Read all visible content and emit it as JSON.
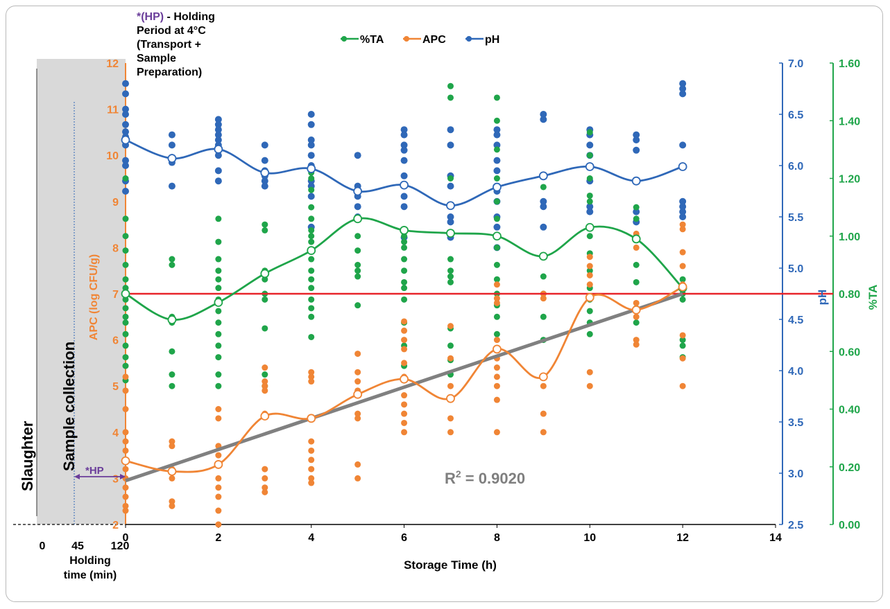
{
  "chart_data": {
    "type": "line",
    "xlabel": "Storage Time (h)",
    "ylabel_left": "APC (log CFU/g)",
    "ylabel_right_ph": "pH",
    "ylabel_right_ta": "%TA",
    "x_ticks": [
      "0",
      "2",
      "4",
      "6",
      "8",
      "10",
      "12",
      "14"
    ],
    "xlim": [
      0,
      14
    ],
    "apc_ticks": [
      "2",
      "3",
      "4",
      "5",
      "6",
      "7",
      "8",
      "9",
      "10",
      "11",
      "12"
    ],
    "apc_lim": [
      2,
      12
    ],
    "ph_ticks": [
      "2.5",
      "3.0",
      "3.5",
      "4.0",
      "4.5",
      "5.0",
      "5.5",
      "6.0",
      "6.5",
      "7.0"
    ],
    "ph_lim": [
      2.5,
      7.0
    ],
    "ta_ticks": [
      "0.00",
      "0.20",
      "0.40",
      "0.60",
      "0.80",
      "1.00",
      "1.20",
      "1.40",
      "1.60"
    ],
    "ta_lim": [
      0,
      1.6
    ],
    "legend": [
      {
        "name": "%TA",
        "color": "#1fa54a"
      },
      {
        "name": "APC",
        "color": "#f08535"
      },
      {
        "name": "pH",
        "color": "#2f68b8"
      }
    ],
    "legend_position": "top-center",
    "threshold_apc": 7,
    "threshold_color": "#e8242a",
    "trend": {
      "x": [
        0,
        12
      ],
      "apc": [
        2.95,
        7.0
      ],
      "color": "#808080"
    },
    "r_squared_label": "R",
    "r_squared_sup": "2",
    "r_squared_value": " = 0.9020",
    "means": {
      "x": [
        0,
        1,
        2,
        3,
        4,
        5,
        6,
        7,
        8,
        9,
        10,
        11,
        12
      ],
      "ph": [
        6.25,
        6.07,
        6.16,
        5.93,
        5.97,
        5.75,
        5.81,
        5.61,
        5.79,
        5.9,
        5.99,
        5.85,
        5.99
      ],
      "apc": [
        3.38,
        3.15,
        3.3,
        4.35,
        4.3,
        4.82,
        5.15,
        4.73,
        5.8,
        5.2,
        6.92,
        6.65,
        7.15
      ],
      "ta": [
        0.8,
        0.71,
        0.77,
        0.87,
        0.95,
        1.06,
        1.02,
        1.01,
        1.0,
        0.93,
        1.03,
        0.99,
        0.82
      ]
    },
    "scatter_ph": [
      [
        0,
        6.8
      ],
      [
        0,
        6.7
      ],
      [
        0,
        6.55
      ],
      [
        0,
        6.5
      ],
      [
        0,
        6.4
      ],
      [
        0,
        6.33
      ],
      [
        0,
        6.28
      ],
      [
        0,
        6.2
      ],
      [
        0,
        6.05
      ],
      [
        0,
        6.0
      ],
      [
        0,
        5.85
      ],
      [
        0,
        5.75
      ],
      [
        1,
        6.3
      ],
      [
        1,
        6.2
      ],
      [
        1,
        6.08
      ],
      [
        1,
        6.03
      ],
      [
        1,
        5.8
      ],
      [
        2,
        6.45
      ],
      [
        2,
        6.4
      ],
      [
        2,
        6.35
      ],
      [
        2,
        6.3
      ],
      [
        2,
        6.25
      ],
      [
        2,
        6.2
      ],
      [
        2,
        6.15
      ],
      [
        2,
        6.1
      ],
      [
        2,
        5.95
      ],
      [
        2,
        5.85
      ],
      [
        3,
        6.2
      ],
      [
        3,
        6.05
      ],
      [
        3,
        5.95
      ],
      [
        3,
        5.9
      ],
      [
        3,
        5.85
      ],
      [
        3,
        5.8
      ],
      [
        4,
        6.5
      ],
      [
        4,
        6.4
      ],
      [
        4,
        6.25
      ],
      [
        4,
        6.2
      ],
      [
        4,
        6.1
      ],
      [
        4,
        6.0
      ],
      [
        4,
        5.85
      ],
      [
        4,
        5.8
      ],
      [
        4,
        5.7
      ],
      [
        4,
        5.4
      ],
      [
        5,
        6.1
      ],
      [
        5,
        5.8
      ],
      [
        5,
        5.7
      ],
      [
        5,
        5.6
      ],
      [
        5,
        5.5
      ],
      [
        6,
        6.35
      ],
      [
        6,
        6.3
      ],
      [
        6,
        6.2
      ],
      [
        6,
        6.15
      ],
      [
        6,
        6.05
      ],
      [
        6,
        5.9
      ],
      [
        6,
        5.8
      ],
      [
        6,
        5.7
      ],
      [
        6,
        5.6
      ],
      [
        6,
        5.3
      ],
      [
        7,
        6.35
      ],
      [
        7,
        6.2
      ],
      [
        7,
        5.9
      ],
      [
        7,
        5.8
      ],
      [
        7,
        5.5
      ],
      [
        7,
        5.45
      ],
      [
        7,
        5.3
      ],
      [
        8,
        6.35
      ],
      [
        8,
        6.3
      ],
      [
        8,
        6.2
      ],
      [
        8,
        6.05
      ],
      [
        8,
        5.95
      ],
      [
        8,
        5.75
      ],
      [
        8,
        5.65
      ],
      [
        8,
        5.5
      ],
      [
        8,
        5.4
      ],
      [
        8,
        5.2
      ],
      [
        9,
        6.5
      ],
      [
        9,
        6.45
      ],
      [
        9,
        5.65
      ],
      [
        9,
        5.6
      ],
      [
        9,
        5.4
      ],
      [
        10,
        6.35
      ],
      [
        10,
        6.3
      ],
      [
        10,
        6.2
      ],
      [
        10,
        6.1
      ],
      [
        10,
        5.85
      ],
      [
        10,
        5.6
      ],
      [
        10,
        5.55
      ],
      [
        11,
        6.3
      ],
      [
        11,
        6.25
      ],
      [
        11,
        6.15
      ],
      [
        11,
        5.85
      ],
      [
        11,
        5.55
      ],
      [
        11,
        5.45
      ],
      [
        12,
        6.8
      ],
      [
        12,
        6.75
      ],
      [
        12,
        6.7
      ],
      [
        12,
        6.2
      ],
      [
        12,
        5.65
      ],
      [
        12,
        5.6
      ],
      [
        12,
        5.55
      ],
      [
        12,
        5.5
      ]
    ],
    "scatter_apc": [
      [
        0,
        5.2
      ],
      [
        0,
        4.9
      ],
      [
        0,
        4.5
      ],
      [
        0,
        4.0
      ],
      [
        0,
        3.8
      ],
      [
        0,
        3.6
      ],
      [
        0,
        3.4
      ],
      [
        0,
        3.2
      ],
      [
        0,
        3.0
      ],
      [
        0,
        2.8
      ],
      [
        0,
        2.6
      ],
      [
        0,
        2.4
      ],
      [
        0,
        2.3
      ],
      [
        1,
        3.8
      ],
      [
        1,
        3.7
      ],
      [
        1,
        3.2
      ],
      [
        1,
        3.0
      ],
      [
        1,
        2.5
      ],
      [
        1,
        2.4
      ],
      [
        2,
        4.5
      ],
      [
        2,
        4.3
      ],
      [
        2,
        3.7
      ],
      [
        2,
        3.5
      ],
      [
        2,
        3.3
      ],
      [
        2,
        3.0
      ],
      [
        2,
        2.8
      ],
      [
        2,
        2.6
      ],
      [
        2,
        2.3
      ],
      [
        2,
        2.0
      ],
      [
        3,
        5.4
      ],
      [
        3,
        5.1
      ],
      [
        3,
        5.0
      ],
      [
        3,
        4.9
      ],
      [
        3,
        4.4
      ],
      [
        3,
        3.2
      ],
      [
        3,
        3.0
      ],
      [
        3,
        2.8
      ],
      [
        3,
        2.7
      ],
      [
        4,
        5.3
      ],
      [
        4,
        5.2
      ],
      [
        4,
        5.1
      ],
      [
        4,
        3.8
      ],
      [
        4,
        3.6
      ],
      [
        4,
        3.4
      ],
      [
        4,
        3.2
      ],
      [
        4,
        3.0
      ],
      [
        4,
        2.9
      ],
      [
        5,
        5.7
      ],
      [
        5,
        5.3
      ],
      [
        5,
        5.1
      ],
      [
        5,
        4.9
      ],
      [
        5,
        4.4
      ],
      [
        5,
        4.3
      ],
      [
        5,
        3.3
      ],
      [
        5,
        3.0
      ],
      [
        6,
        6.4
      ],
      [
        6,
        6.2
      ],
      [
        6,
        6.0
      ],
      [
        6,
        5.8
      ],
      [
        6,
        5.5
      ],
      [
        6,
        5.2
      ],
      [
        6,
        4.8
      ],
      [
        6,
        4.6
      ],
      [
        6,
        4.4
      ],
      [
        6,
        4.2
      ],
      [
        6,
        4.0
      ],
      [
        7,
        6.3
      ],
      [
        7,
        5.6
      ],
      [
        7,
        5.0
      ],
      [
        7,
        4.7
      ],
      [
        7,
        4.3
      ],
      [
        7,
        4.0
      ],
      [
        8,
        7.2
      ],
      [
        8,
        6.9
      ],
      [
        8,
        6.8
      ],
      [
        8,
        6.0
      ],
      [
        8,
        5.6
      ],
      [
        8,
        5.4
      ],
      [
        8,
        5.2
      ],
      [
        8,
        5.0
      ],
      [
        8,
        4.7
      ],
      [
        8,
        4.0
      ],
      [
        9,
        7.0
      ],
      [
        9,
        6.9
      ],
      [
        9,
        5.0
      ],
      [
        9,
        4.4
      ],
      [
        9,
        4.0
      ],
      [
        10,
        7.8
      ],
      [
        10,
        7.6
      ],
      [
        10,
        7.4
      ],
      [
        10,
        7.2
      ],
      [
        10,
        6.9
      ],
      [
        10,
        5.3
      ],
      [
        10,
        5.0
      ],
      [
        11,
        8.3
      ],
      [
        11,
        8.0
      ],
      [
        11,
        6.8
      ],
      [
        11,
        6.5
      ],
      [
        11,
        6.0
      ],
      [
        11,
        5.9
      ],
      [
        12,
        8.5
      ],
      [
        12,
        8.4
      ],
      [
        12,
        7.9
      ],
      [
        12,
        7.6
      ],
      [
        12,
        7.2
      ],
      [
        12,
        6.1
      ],
      [
        12,
        5.6
      ],
      [
        12,
        5.0
      ]
    ],
    "scatter_ta": [
      [
        0,
        1.2
      ],
      [
        0,
        1.06
      ],
      [
        0,
        1.0
      ],
      [
        0,
        0.95
      ],
      [
        0,
        0.9
      ],
      [
        0,
        0.85
      ],
      [
        0,
        0.82
      ],
      [
        0,
        0.78
      ],
      [
        0,
        0.75
      ],
      [
        0,
        0.72
      ],
      [
        0,
        0.7
      ],
      [
        0,
        0.66
      ],
      [
        0,
        0.62
      ],
      [
        0,
        0.58
      ],
      [
        0,
        0.55
      ],
      [
        0,
        0.5
      ],
      [
        1,
        0.92
      ],
      [
        1,
        0.9
      ],
      [
        1,
        0.72
      ],
      [
        1,
        0.7
      ],
      [
        1,
        0.6
      ],
      [
        1,
        0.52
      ],
      [
        1,
        0.48
      ],
      [
        2,
        1.06
      ],
      [
        2,
        0.98
      ],
      [
        2,
        0.92
      ],
      [
        2,
        0.88
      ],
      [
        2,
        0.85
      ],
      [
        2,
        0.82
      ],
      [
        2,
        0.78
      ],
      [
        2,
        0.74
      ],
      [
        2,
        0.7
      ],
      [
        2,
        0.66
      ],
      [
        2,
        0.62
      ],
      [
        2,
        0.58
      ],
      [
        2,
        0.52
      ],
      [
        2,
        0.48
      ],
      [
        3,
        1.04
      ],
      [
        3,
        1.02
      ],
      [
        3,
        0.88
      ],
      [
        3,
        0.85
      ],
      [
        3,
        0.8
      ],
      [
        3,
        0.78
      ],
      [
        3,
        0.68
      ],
      [
        3,
        0.52
      ],
      [
        3,
        0.48
      ],
      [
        4,
        1.22
      ],
      [
        4,
        1.2
      ],
      [
        4,
        1.16
      ],
      [
        4,
        1.1
      ],
      [
        4,
        1.06
      ],
      [
        4,
        1.02
      ],
      [
        4,
        1.0
      ],
      [
        4,
        0.98
      ],
      [
        4,
        0.92
      ],
      [
        4,
        0.88
      ],
      [
        4,
        0.85
      ],
      [
        4,
        0.82
      ],
      [
        4,
        0.78
      ],
      [
        4,
        0.75
      ],
      [
        4,
        0.72
      ],
      [
        4,
        0.65
      ],
      [
        5,
        1.0
      ],
      [
        5,
        0.95
      ],
      [
        5,
        0.9
      ],
      [
        5,
        0.88
      ],
      [
        5,
        0.86
      ],
      [
        5,
        0.76
      ],
      [
        6,
        1.0
      ],
      [
        6,
        0.98
      ],
      [
        6,
        0.96
      ],
      [
        6,
        0.92
      ],
      [
        6,
        0.88
      ],
      [
        6,
        0.84
      ],
      [
        6,
        0.82
      ],
      [
        6,
        0.78
      ],
      [
        6,
        0.7
      ],
      [
        6,
        0.62
      ],
      [
        6,
        0.55
      ],
      [
        7,
        1.52
      ],
      [
        7,
        1.48
      ],
      [
        7,
        1.2
      ],
      [
        7,
        0.92
      ],
      [
        7,
        0.88
      ],
      [
        7,
        0.86
      ],
      [
        7,
        0.84
      ],
      [
        7,
        0.68
      ],
      [
        7,
        0.62
      ],
      [
        7,
        0.57
      ],
      [
        7,
        0.52
      ],
      [
        8,
        1.48
      ],
      [
        8,
        1.4
      ],
      [
        8,
        1.3
      ],
      [
        8,
        1.2
      ],
      [
        8,
        1.12
      ],
      [
        8,
        1.06
      ],
      [
        8,
        0.96
      ],
      [
        8,
        0.9
      ],
      [
        8,
        0.85
      ],
      [
        8,
        0.8
      ],
      [
        8,
        0.76
      ],
      [
        8,
        0.72
      ],
      [
        8,
        0.66
      ],
      [
        9,
        1.17
      ],
      [
        9,
        0.86
      ],
      [
        9,
        0.8
      ],
      [
        9,
        0.72
      ],
      [
        9,
        0.64
      ],
      [
        10,
        1.36
      ],
      [
        10,
        1.28
      ],
      [
        10,
        1.2
      ],
      [
        10,
        1.14
      ],
      [
        10,
        1.12
      ],
      [
        10,
        1.0
      ],
      [
        10,
        0.94
      ],
      [
        10,
        0.88
      ],
      [
        10,
        0.82
      ],
      [
        10,
        0.78
      ],
      [
        10,
        0.74
      ],
      [
        10,
        0.7
      ],
      [
        10,
        0.66
      ],
      [
        11,
        1.1
      ],
      [
        11,
        1.06
      ],
      [
        11,
        1.0
      ],
      [
        11,
        0.9
      ],
      [
        11,
        0.84
      ],
      [
        11,
        0.75
      ],
      [
        11,
        0.7
      ],
      [
        12,
        0.85
      ],
      [
        12,
        0.8
      ],
      [
        12,
        0.78
      ],
      [
        12,
        0.64
      ],
      [
        12,
        0.62
      ],
      [
        12,
        0.58
      ]
    ]
  },
  "annotations": {
    "hp_title_prefix": "*(HP)",
    "hp_title_rest": " - Holding",
    "hp_lines": [
      "Period  at 4°C",
      "(Transport +",
      "Sample",
      "Preparation)"
    ],
    "hp_arrow_label": "*HP",
    "slaughter": "Slaughter",
    "sample_collection": "Sample collection",
    "holding_ticks": [
      "0",
      "45",
      "120"
    ],
    "holding_label_1": "Holding",
    "holding_label_2": "time (min)"
  },
  "colors": {
    "ta": "#1fa54a",
    "apc": "#f08535",
    "ph": "#2f68b8",
    "trend": "#808080",
    "threshold": "#e8242a",
    "hp": "#6a3d9a",
    "shade": "#d9d9d9"
  }
}
